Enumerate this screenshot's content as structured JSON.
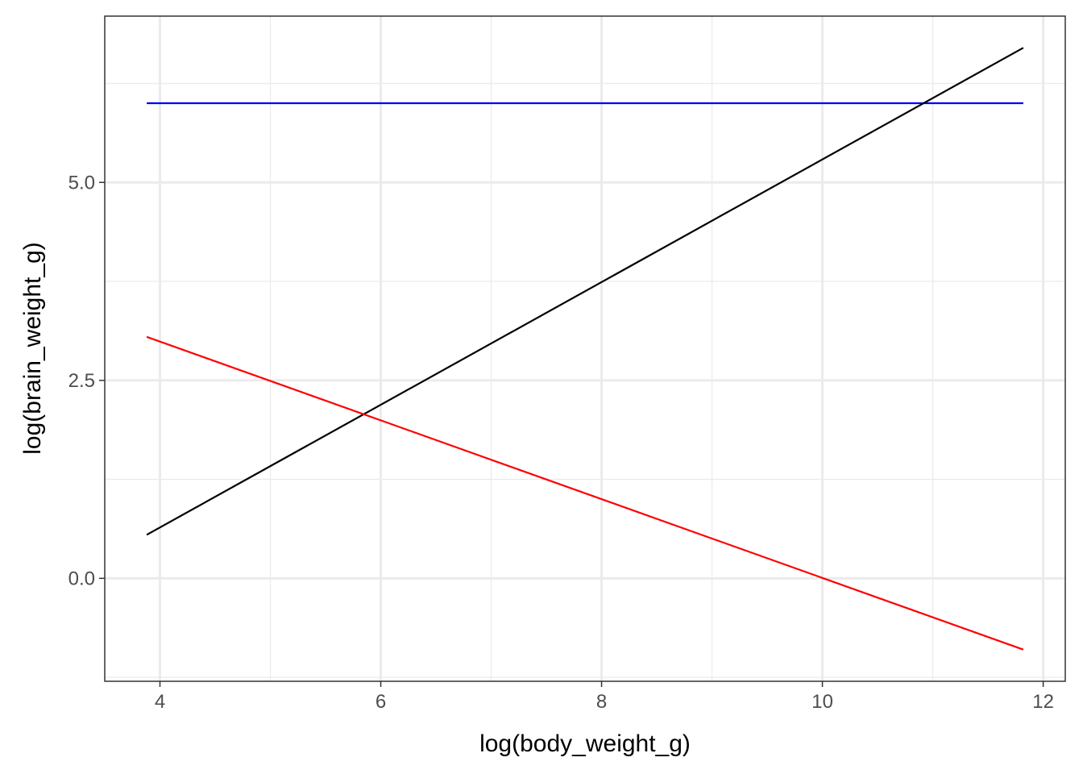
{
  "chart_data": {
    "type": "line",
    "title": "",
    "xlabel": "log(body_weight_g)",
    "ylabel": "log(brain_weight_g)",
    "xlim": [
      3.5,
      12.2
    ],
    "ylim": [
      -1.3,
      7.1
    ],
    "x_ticks": [
      4,
      6,
      8,
      10,
      12
    ],
    "x_tick_labels": [
      "4",
      "6",
      "8",
      "10",
      "12"
    ],
    "y_ticks": [
      0,
      2.5,
      5
    ],
    "y_tick_labels": [
      "0.0",
      "2.5",
      "5.0"
    ],
    "grid": true,
    "series": [
      {
        "color": "#0000ff",
        "points": [
          [
            3.88,
            6.0
          ],
          [
            11.82,
            6.0
          ]
        ]
      },
      {
        "color": "#000000",
        "points": [
          [
            3.88,
            0.55
          ],
          [
            11.82,
            6.7
          ]
        ]
      },
      {
        "color": "#ff0000",
        "points": [
          [
            3.88,
            3.05
          ],
          [
            11.82,
            -0.9
          ]
        ]
      }
    ]
  }
}
